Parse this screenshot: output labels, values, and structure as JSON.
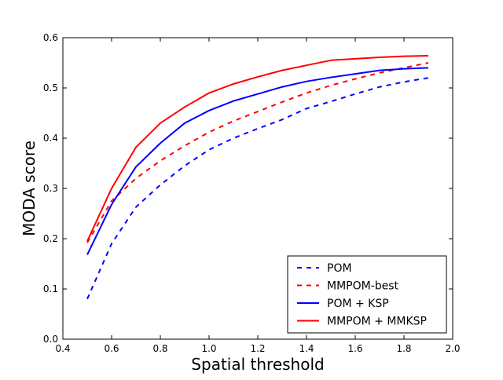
{
  "chart_data": {
    "type": "line",
    "xlabel": "Spatial threshold",
    "ylabel": "MODA score",
    "xlim": [
      0.4,
      2.0
    ],
    "ylim": [
      0.0,
      0.6
    ],
    "xticks": [
      "0.4",
      "0.6",
      "0.8",
      "1.0",
      "1.2",
      "1.4",
      "1.6",
      "1.8",
      "2.0"
    ],
    "yticks": [
      "0.0",
      "0.1",
      "0.2",
      "0.3",
      "0.4",
      "0.5",
      "0.6"
    ],
    "grid": false,
    "legend_position": "bottom-right",
    "x": [
      0.5,
      0.6,
      0.7,
      0.8,
      0.9,
      1.0,
      1.1,
      1.2,
      1.3,
      1.4,
      1.5,
      1.6,
      1.7,
      1.8,
      1.9
    ],
    "series": [
      {
        "name": "POM",
        "color": "#0000ff",
        "dash": "dashed",
        "values": [
          0.08,
          0.19,
          0.263,
          0.307,
          0.345,
          0.377,
          0.4,
          0.419,
          0.437,
          0.459,
          0.473,
          0.488,
          0.502,
          0.512,
          0.52
        ]
      },
      {
        "name": "MMPOM-best",
        "color": "#ff0000",
        "dash": "dashed",
        "values": [
          0.192,
          0.275,
          0.32,
          0.355,
          0.385,
          0.412,
          0.434,
          0.453,
          0.472,
          0.49,
          0.505,
          0.518,
          0.53,
          0.54,
          0.55
        ]
      },
      {
        "name": "POM + KSP",
        "color": "#0000ff",
        "dash": "solid",
        "values": [
          0.168,
          0.268,
          0.343,
          0.39,
          0.43,
          0.455,
          0.474,
          0.488,
          0.502,
          0.513,
          0.521,
          0.528,
          0.535,
          0.538,
          0.54
        ]
      },
      {
        "name": "MMPOM + MMKSP",
        "color": "#ff0000",
        "dash": "solid",
        "values": [
          0.195,
          0.3,
          0.382,
          0.43,
          0.462,
          0.49,
          0.508,
          0.522,
          0.535,
          0.545,
          0.555,
          0.558,
          0.561,
          0.563,
          0.564
        ]
      }
    ]
  }
}
